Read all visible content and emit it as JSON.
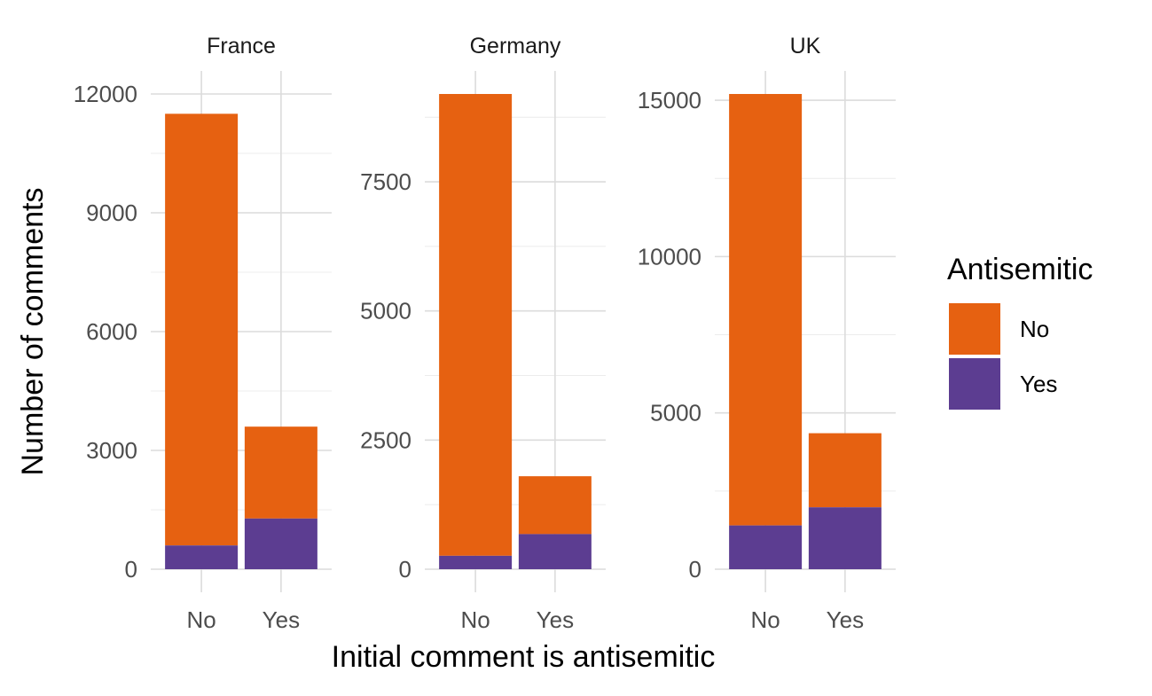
{
  "chart_data": {
    "type": "bar",
    "stacked": true,
    "xlabel": "Initial comment is antisemitic",
    "ylabel": "Number of comments",
    "categories": [
      "No",
      "Yes"
    ],
    "legend": {
      "title": "Antisemitic",
      "position": "right",
      "entries": [
        {
          "label": "No",
          "color": "#E66111"
        },
        {
          "label": "Yes",
          "color": "#5C3D91"
        }
      ]
    },
    "grid": true,
    "facets": [
      {
        "title": "France",
        "ylim": [
          0,
          12000
        ],
        "yticks": [
          0,
          3000,
          6000,
          9000,
          12000
        ],
        "ytick_labels": [
          "0",
          "3000",
          "6000",
          "9000",
          "12000"
        ],
        "series": [
          {
            "values": [
              11500,
              3600
            ]
          },
          {
            "values": [
              600,
              1280
            ]
          }
        ]
      },
      {
        "title": "Germany",
        "ylim": [
          0,
          9200
        ],
        "yticks": [
          0,
          2500,
          5000,
          7500
        ],
        "ytick_labels": [
          "0",
          "2500",
          "5000",
          "7500"
        ],
        "series": [
          {
            "values": [
              9200,
              1800
            ]
          },
          {
            "values": [
              260,
              680
            ]
          }
        ]
      },
      {
        "title": "UK",
        "ylim": [
          0,
          15200
        ],
        "yticks": [
          0,
          5000,
          10000,
          15000
        ],
        "ytick_labels": [
          "0",
          "5000",
          "10000",
          "15000"
        ],
        "series": [
          {
            "values": [
              15200,
              4350
            ]
          },
          {
            "values": [
              1400,
              1980
            ]
          }
        ]
      }
    ]
  }
}
